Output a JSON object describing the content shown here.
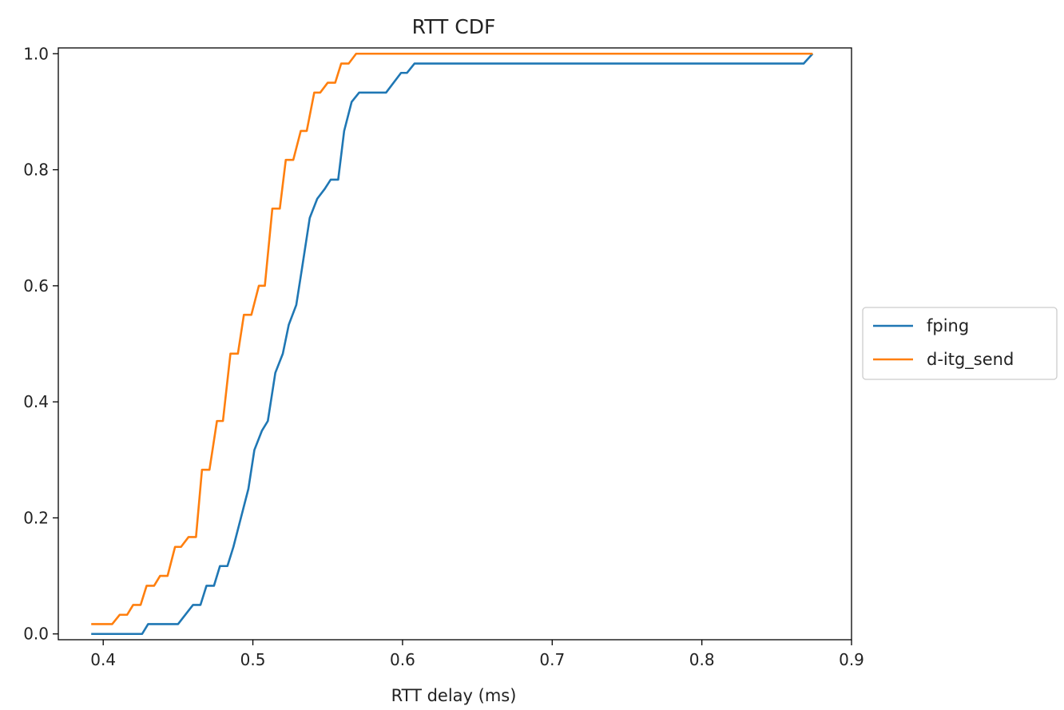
{
  "chart_data": {
    "type": "line",
    "title": "RTT CDF",
    "xlabel": "RTT delay (ms)",
    "ylabel": "",
    "xlim": [
      0.37,
      0.9
    ],
    "ylim": [
      -0.01,
      1.01
    ],
    "xticks": [
      "0.4",
      "0.5",
      "0.6",
      "0.7",
      "0.8",
      "0.9"
    ],
    "yticks": [
      "0.0",
      "0.2",
      "0.4",
      "0.6",
      "0.8",
      "1.0"
    ],
    "grid": false,
    "legend_position": "center-right outside",
    "series": [
      {
        "name": "fping",
        "color": "#1f77b4",
        "points": [
          [
            0.392,
            0.0
          ],
          [
            0.426,
            0.0
          ],
          [
            0.43,
            0.017
          ],
          [
            0.45,
            0.017
          ],
          [
            0.46,
            0.05
          ],
          [
            0.465,
            0.05
          ],
          [
            0.469,
            0.083
          ],
          [
            0.474,
            0.083
          ],
          [
            0.478,
            0.117
          ],
          [
            0.483,
            0.117
          ],
          [
            0.487,
            0.15
          ],
          [
            0.492,
            0.2
          ],
          [
            0.497,
            0.25
          ],
          [
            0.501,
            0.317
          ],
          [
            0.506,
            0.35
          ],
          [
            0.51,
            0.367
          ],
          [
            0.515,
            0.45
          ],
          [
            0.52,
            0.483
          ],
          [
            0.524,
            0.533
          ],
          [
            0.529,
            0.567
          ],
          [
            0.533,
            0.633
          ],
          [
            0.538,
            0.717
          ],
          [
            0.543,
            0.75
          ],
          [
            0.548,
            0.767
          ],
          [
            0.552,
            0.783
          ],
          [
            0.557,
            0.783
          ],
          [
            0.561,
            0.867
          ],
          [
            0.566,
            0.917
          ],
          [
            0.571,
            0.933
          ],
          [
            0.589,
            0.933
          ],
          [
            0.599,
            0.967
          ],
          [
            0.603,
            0.967
          ],
          [
            0.608,
            0.983
          ],
          [
            0.868,
            0.983
          ],
          [
            0.874,
            1.0
          ]
        ]
      },
      {
        "name": "d-itg_send",
        "color": "#ff7f0e",
        "points": [
          [
            0.392,
            0.017
          ],
          [
            0.406,
            0.017
          ],
          [
            0.411,
            0.033
          ],
          [
            0.416,
            0.033
          ],
          [
            0.42,
            0.05
          ],
          [
            0.425,
            0.05
          ],
          [
            0.429,
            0.083
          ],
          [
            0.434,
            0.083
          ],
          [
            0.438,
            0.1
          ],
          [
            0.443,
            0.1
          ],
          [
            0.448,
            0.15
          ],
          [
            0.452,
            0.15
          ],
          [
            0.457,
            0.167
          ],
          [
            0.462,
            0.167
          ],
          [
            0.466,
            0.283
          ],
          [
            0.471,
            0.283
          ],
          [
            0.476,
            0.367
          ],
          [
            0.48,
            0.367
          ],
          [
            0.485,
            0.483
          ],
          [
            0.49,
            0.483
          ],
          [
            0.494,
            0.55
          ],
          [
            0.499,
            0.55
          ],
          [
            0.504,
            0.6
          ],
          [
            0.508,
            0.6
          ],
          [
            0.513,
            0.733
          ],
          [
            0.518,
            0.733
          ],
          [
            0.522,
            0.817
          ],
          [
            0.527,
            0.817
          ],
          [
            0.532,
            0.867
          ],
          [
            0.536,
            0.867
          ],
          [
            0.541,
            0.933
          ],
          [
            0.545,
            0.933
          ],
          [
            0.55,
            0.95
          ],
          [
            0.555,
            0.95
          ],
          [
            0.559,
            0.983
          ],
          [
            0.564,
            0.983
          ],
          [
            0.569,
            1.0
          ],
          [
            0.874,
            1.0
          ]
        ]
      }
    ]
  }
}
